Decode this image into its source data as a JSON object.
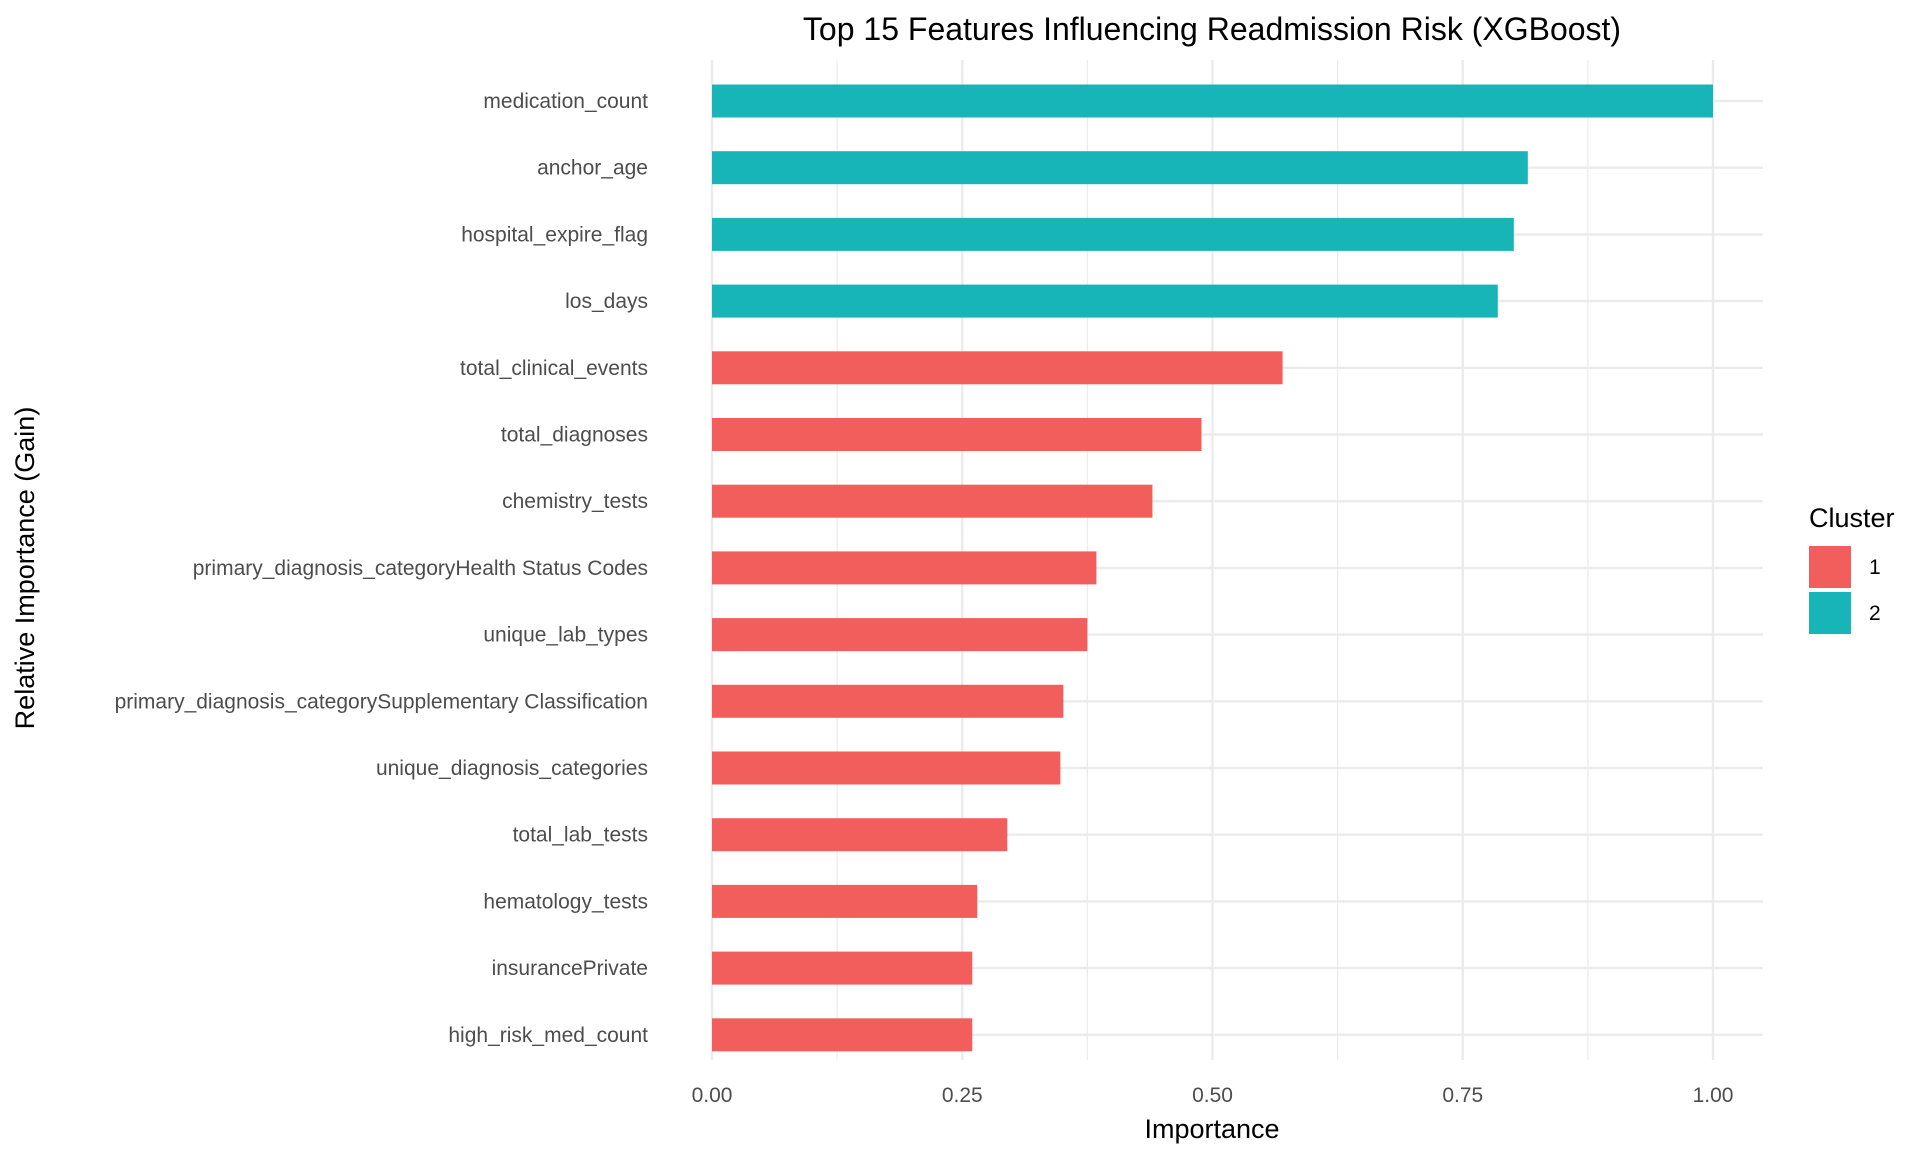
{
  "chart_data": {
    "type": "bar",
    "orientation": "horizontal",
    "title": "Top 15 Features Influencing Readmission Risk (XGBoost)",
    "xlabel": "Importance",
    "ylabel": "Relative Importance (Gain)",
    "xlim": [
      0,
      1.05
    ],
    "x_ticks": [
      "0.00",
      "0.25",
      "0.50",
      "0.75",
      "1.00"
    ],
    "x_tick_values": [
      0,
      0.25,
      0.5,
      0.75,
      1.0
    ],
    "grid": true,
    "legend": {
      "title": "Cluster",
      "placement": "right",
      "entries": [
        {
          "label": "1",
          "color": "#F8766D"
        },
        {
          "label": "2",
          "color": "#00BFC4"
        }
      ]
    },
    "colors": {
      "1": "#F25E5B",
      "2": "#17B5B8"
    },
    "bars": [
      {
        "feature": "medication_count",
        "value": 1.0,
        "cluster": "2"
      },
      {
        "feature": "anchor_age",
        "value": 0.815,
        "cluster": "2"
      },
      {
        "feature": "hospital_expire_flag",
        "value": 0.801,
        "cluster": "2"
      },
      {
        "feature": "los_days",
        "value": 0.785,
        "cluster": "2"
      },
      {
        "feature": "total_clinical_events",
        "value": 0.57,
        "cluster": "1"
      },
      {
        "feature": "total_diagnoses",
        "value": 0.489,
        "cluster": "1"
      },
      {
        "feature": "chemistry_tests",
        "value": 0.44,
        "cluster": "1"
      },
      {
        "feature": "primary_diagnosis_categoryHealth Status Codes",
        "value": 0.384,
        "cluster": "1"
      },
      {
        "feature": "unique_lab_types",
        "value": 0.375,
        "cluster": "1"
      },
      {
        "feature": "primary_diagnosis_categorySupplementary Classification",
        "value": 0.351,
        "cluster": "1"
      },
      {
        "feature": "unique_diagnosis_categories",
        "value": 0.348,
        "cluster": "1"
      },
      {
        "feature": "total_lab_tests",
        "value": 0.295,
        "cluster": "1"
      },
      {
        "feature": "hematology_tests",
        "value": 0.265,
        "cluster": "1"
      },
      {
        "feature": "insurancePrivate",
        "value": 0.26,
        "cluster": "1"
      },
      {
        "feature": "high_risk_med_count",
        "value": 0.26,
        "cluster": "1"
      }
    ]
  }
}
